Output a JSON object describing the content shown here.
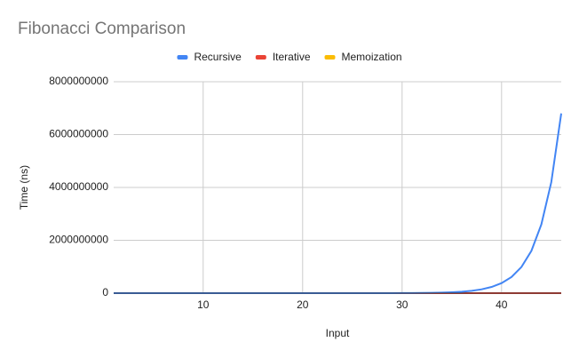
{
  "chart_data": {
    "type": "line",
    "title": "Fibonacci Comparison",
    "x_label": "Input",
    "y_label": "Time (ns)",
    "x": [
      1,
      2,
      3,
      4,
      5,
      6,
      7,
      8,
      9,
      10,
      11,
      12,
      13,
      14,
      15,
      16,
      17,
      18,
      19,
      20,
      21,
      22,
      23,
      24,
      25,
      26,
      27,
      28,
      29,
      30,
      31,
      32,
      33,
      34,
      35,
      36,
      37,
      38,
      39,
      40,
      41,
      42,
      43,
      44,
      45,
      46
    ],
    "series": [
      {
        "name": "Recursive",
        "color": "#4285f4",
        "values": [
          3,
          5,
          8,
          12,
          20,
          30,
          50,
          80,
          120,
          200,
          320,
          520,
          850,
          1400,
          2200,
          3600,
          5900,
          9500,
          15000,
          25000,
          40000,
          65000,
          105000,
          170000,
          280000,
          450000,
          730000,
          1200000,
          1900000,
          3000000,
          5000000,
          8000000,
          13000000,
          21000000,
          34000000,
          55000000,
          90000000,
          145000000,
          235000000,
          380000000,
          610000000,
          990000000,
          1600000000,
          2600000000,
          4200000000,
          6800000000
        ]
      },
      {
        "name": "Iterative",
        "color": "#ea4335",
        "values": [
          500,
          500,
          500,
          500,
          500,
          500,
          500,
          500,
          500,
          500,
          500,
          500,
          500,
          500,
          500,
          500,
          500,
          500,
          500,
          500,
          500,
          500,
          500,
          500,
          500,
          500,
          500,
          500,
          500,
          500,
          500,
          500,
          500,
          500,
          500,
          500,
          500,
          500,
          500,
          500,
          500,
          500,
          500,
          500,
          500,
          500
        ]
      },
      {
        "name": "Memoization",
        "color": "#fbbc04",
        "values": [
          700,
          700,
          700,
          700,
          700,
          700,
          700,
          700,
          700,
          700,
          700,
          700,
          700,
          700,
          700,
          700,
          700,
          700,
          700,
          700,
          700,
          700,
          700,
          700,
          700,
          700,
          700,
          700,
          700,
          700,
          700,
          700,
          700,
          700,
          700,
          700,
          700,
          700,
          700,
          700,
          700,
          700,
          700,
          700,
          700,
          700
        ]
      }
    ],
    "xlim": [
      1,
      46
    ],
    "xticks": [
      10,
      20,
      30,
      40
    ],
    "ylim": [
      0,
      8000000000
    ],
    "yticks": [
      0,
      2000000000,
      4000000000,
      6000000000,
      8000000000
    ],
    "grid": true,
    "legend": "top"
  }
}
